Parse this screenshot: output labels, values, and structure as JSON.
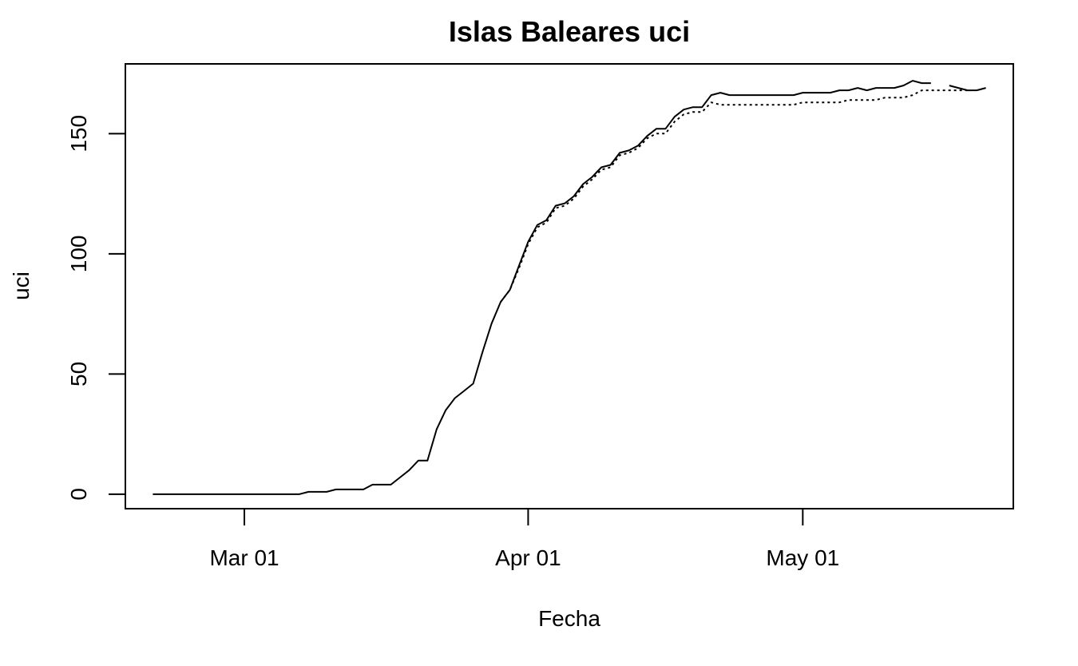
{
  "chart_data": {
    "type": "line",
    "title": "Islas Baleares uci",
    "xlabel": "Fecha",
    "ylabel": "uci",
    "xlim": [
      "2020-02-17",
      "2020-05-24"
    ],
    "ylim": [
      -6,
      179
    ],
    "x_ticks": [
      {
        "date": "2020-03-01",
        "label": "Mar 01"
      },
      {
        "date": "2020-04-01",
        "label": "Apr 01"
      },
      {
        "date": "2020-05-01",
        "label": "May 01"
      }
    ],
    "y_ticks": [
      0,
      50,
      100,
      150
    ],
    "grid": false,
    "legend": "none",
    "series": [
      {
        "line_style": "solid",
        "points": [
          [
            "2020-02-20",
            0
          ],
          [
            "2020-03-07",
            0
          ],
          [
            "2020-03-08",
            1
          ],
          [
            "2020-03-10",
            1
          ],
          [
            "2020-03-11",
            2
          ],
          [
            "2020-03-14",
            2
          ],
          [
            "2020-03-15",
            4
          ],
          [
            "2020-03-17",
            4
          ],
          [
            "2020-03-18",
            7
          ],
          [
            "2020-03-19",
            10
          ],
          [
            "2020-03-20",
            14
          ],
          [
            "2020-03-21",
            14
          ],
          [
            "2020-03-22",
            27
          ],
          [
            "2020-03-23",
            35
          ],
          [
            "2020-03-24",
            40
          ],
          [
            "2020-03-25",
            43
          ],
          [
            "2020-03-26",
            46
          ],
          [
            "2020-03-27",
            59
          ],
          [
            "2020-03-28",
            71
          ],
          [
            "2020-03-29",
            80
          ],
          [
            "2020-03-30",
            85
          ],
          [
            "2020-03-31",
            95
          ],
          [
            "2020-04-01",
            105
          ],
          [
            "2020-04-02",
            112
          ],
          [
            "2020-04-03",
            114
          ],
          [
            "2020-04-04",
            120
          ],
          [
            "2020-04-05",
            121
          ],
          [
            "2020-04-06",
            124
          ],
          [
            "2020-04-07",
            129
          ],
          [
            "2020-04-08",
            132
          ],
          [
            "2020-04-09",
            136
          ],
          [
            "2020-04-10",
            137
          ],
          [
            "2020-04-11",
            142
          ],
          [
            "2020-04-12",
            143
          ],
          [
            "2020-04-13",
            145
          ],
          [
            "2020-04-14",
            149
          ],
          [
            "2020-04-15",
            152
          ],
          [
            "2020-04-16",
            152
          ],
          [
            "2020-04-17",
            157
          ],
          [
            "2020-04-18",
            160
          ],
          [
            "2020-04-19",
            161
          ],
          [
            "2020-04-20",
            161
          ],
          [
            "2020-04-21",
            166
          ],
          [
            "2020-04-22",
            167
          ],
          [
            "2020-04-23",
            166
          ],
          [
            "2020-04-30",
            166
          ],
          [
            "2020-05-01",
            167
          ],
          [
            "2020-05-03",
            167
          ],
          [
            "2020-05-04",
            167
          ],
          [
            "2020-05-05",
            168
          ],
          [
            "2020-05-06",
            168
          ],
          [
            "2020-05-07",
            169
          ],
          [
            "2020-05-08",
            168
          ],
          [
            "2020-05-09",
            169
          ],
          [
            "2020-05-11",
            169
          ],
          [
            "2020-05-12",
            170
          ],
          [
            "2020-05-13",
            172
          ],
          [
            "2020-05-14",
            171
          ],
          [
            "2020-05-15",
            171
          ],
          null,
          [
            "2020-05-17",
            170
          ],
          [
            "2020-05-18",
            169
          ],
          [
            "2020-05-19",
            168
          ],
          [
            "2020-05-20",
            168
          ],
          [
            "2020-05-21",
            169
          ]
        ]
      },
      {
        "line_style": "dotted",
        "points": [
          [
            "2020-03-29",
            80
          ],
          [
            "2020-03-30",
            85
          ],
          [
            "2020-03-31",
            94
          ],
          [
            "2020-04-01",
            104
          ],
          [
            "2020-04-02",
            111
          ],
          [
            "2020-04-03",
            113
          ],
          [
            "2020-04-04",
            119
          ],
          [
            "2020-04-05",
            120
          ],
          [
            "2020-04-06",
            123
          ],
          [
            "2020-04-07",
            128
          ],
          [
            "2020-04-08",
            131
          ],
          [
            "2020-04-09",
            135
          ],
          [
            "2020-04-10",
            136
          ],
          [
            "2020-04-11",
            141
          ],
          [
            "2020-04-12",
            142
          ],
          [
            "2020-04-13",
            144
          ],
          [
            "2020-04-14",
            148
          ],
          [
            "2020-04-15",
            150
          ],
          [
            "2020-04-16",
            150
          ],
          [
            "2020-04-17",
            155
          ],
          [
            "2020-04-18",
            158
          ],
          [
            "2020-04-19",
            159
          ],
          [
            "2020-04-20",
            159
          ],
          [
            "2020-04-21",
            163
          ],
          [
            "2020-04-22",
            162
          ],
          [
            "2020-04-30",
            162
          ],
          [
            "2020-05-01",
            163
          ],
          [
            "2020-05-05",
            163
          ],
          [
            "2020-05-06",
            164
          ],
          [
            "2020-05-09",
            164
          ],
          [
            "2020-05-10",
            165
          ],
          [
            "2020-05-12",
            165
          ],
          [
            "2020-05-13",
            166
          ],
          [
            "2020-05-14",
            168
          ],
          [
            "2020-05-19",
            168
          ]
        ]
      }
    ]
  }
}
